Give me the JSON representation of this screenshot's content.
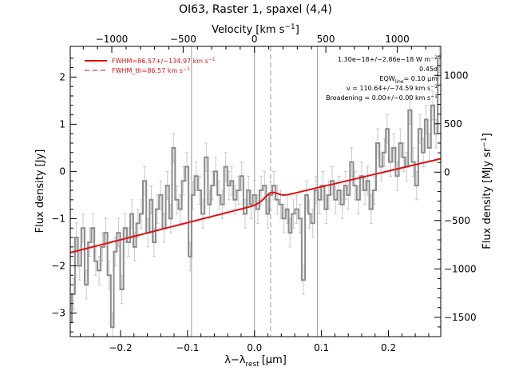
{
  "chart_data": {
    "type": "line",
    "title": "OI63, Raster 1, spaxel (4,4)",
    "xlabel": "λ−λ",
    "xlabel_sub": "rest",
    "xlabel_unit": "[μm]",
    "ylabel_left": "Flux density [Jy]",
    "ylabel_right": "Flux density [MJy sr",
    "ylabel_right_sup": "−1",
    "ylabel_right_end": "]",
    "top_axis_label": "Velocity [km s",
    "top_axis_label_sup": "−1",
    "top_axis_label_end": "]",
    "xlim": [
      -0.275,
      0.278
    ],
    "ylim": [
      -3.5,
      2.65
    ],
    "right_ylim": [
      -1700,
      1300
    ],
    "top_axis_map": {
      "vel_at_x0": 0,
      "x_per_1000_kms": 0.213
    },
    "x_ticks": [
      -0.2,
      -0.1,
      0.0,
      0.1,
      0.2
    ],
    "x_tick_labels": [
      "−0.2",
      "−0.1",
      "0.0",
      "0.1",
      "0.2"
    ],
    "y_ticks": [
      -3,
      -2,
      -1,
      0,
      1,
      2
    ],
    "y_tick_labels": [
      "−3",
      "−2",
      "−1",
      "0",
      "1",
      "2"
    ],
    "right_ticks": [
      -1500,
      -1000,
      -500,
      0,
      500,
      1000
    ],
    "right_tick_labels": [
      "−1500",
      "−1000",
      "−500",
      "0",
      "500",
      "1000"
    ],
    "top_ticks": [
      -1000,
      -500,
      0,
      500,
      1000
    ],
    "top_tick_labels": [
      "−1000",
      "−500",
      "0",
      "500",
      "1000"
    ],
    "vlines_solid": [
      -0.094,
      0.0,
      0.094
    ],
    "vline_dashed": 0.024,
    "legend": [
      {
        "label": "FWHM=86.57+/−134.97 km s",
        "sup": "−1",
        "style": "solid"
      },
      {
        "label": "FWHM_th=86.57 km s",
        "sup": "−1",
        "style": "dashed"
      }
    ],
    "annotations": [
      "1.30e−18+/−2.86e−18 W m",
      "−2",
      "0.45σ",
      "EQW",
      "line",
      "= 0.10 μm",
      "v = 110.64+/−74.59 km s",
      "−1",
      "Broadening = 0.00+/−0.00 km s",
      "−1"
    ],
    "colors": {
      "data": "#8c8c8c",
      "errorbar": "#c8c8c8",
      "fit": "#e01010",
      "axis": "#000000",
      "vline": "#9a9a9a"
    },
    "fit_line": {
      "x": [
        -0.275,
        -0.002,
        0.024,
        0.278
      ],
      "y": [
        -1.72,
        -0.73,
        -0.58,
        0.27
      ],
      "bump_center": 0.025,
      "bump_amp": 0.13,
      "bump_sigma": 0.009
    },
    "series": [
      {
        "x": [
          -0.275,
          -0.27,
          -0.266,
          -0.261,
          -0.256,
          -0.251,
          -0.246,
          -0.241,
          -0.237,
          -0.232,
          -0.227,
          -0.222,
          -0.217,
          -0.212,
          -0.208,
          -0.203,
          -0.198,
          -0.193,
          -0.188,
          -0.183,
          -0.179,
          -0.174,
          -0.169,
          -0.164,
          -0.159,
          -0.154,
          -0.15,
          -0.145,
          -0.14,
          -0.135,
          -0.13,
          -0.125,
          -0.121,
          -0.116,
          -0.111,
          -0.106,
          -0.101,
          -0.096,
          -0.092,
          -0.087,
          -0.082,
          -0.077,
          -0.072,
          -0.067,
          -0.063,
          -0.058,
          -0.053,
          -0.048,
          -0.043,
          -0.038,
          -0.034,
          -0.029,
          -0.024,
          -0.019,
          -0.014,
          -0.009,
          -0.005,
          0.0,
          0.005,
          0.01,
          0.015,
          0.02,
          0.024,
          0.029,
          0.034,
          0.039,
          0.044,
          0.049,
          0.053,
          0.058,
          0.063,
          0.068,
          0.073,
          0.078,
          0.082,
          0.087,
          0.092,
          0.097,
          0.102,
          0.107,
          0.111,
          0.116,
          0.121,
          0.126,
          0.131,
          0.136,
          0.14,
          0.145,
          0.15,
          0.155,
          0.16,
          0.165,
          0.169,
          0.174,
          0.179,
          0.184,
          0.189,
          0.194,
          0.198,
          0.203,
          0.208,
          0.213,
          0.218,
          0.223,
          0.227,
          0.232,
          0.237,
          0.242,
          0.247,
          0.252,
          0.256,
          0.261,
          0.266,
          0.271,
          0.276
        ],
        "y": [
          -3.2,
          -2.6,
          -1.4,
          -2.0,
          -1.2,
          -2.4,
          -1.5,
          -1.2,
          -1.9,
          -2.1,
          -1.6,
          -1.3,
          -2.2,
          -3.3,
          -1.7,
          -1.3,
          -2.5,
          -1.2,
          -1.5,
          -0.9,
          -1.6,
          -1.1,
          -0.9,
          -0.2,
          -1.3,
          -0.6,
          -1.5,
          -0.8,
          -0.5,
          -1.2,
          -0.3,
          -1.0,
          0.5,
          -0.6,
          -0.8,
          -0.2,
          0.1,
          -1.8,
          -0.5,
          -0.1,
          -0.4,
          -0.9,
          0.3,
          -0.7,
          -0.3,
          0.0,
          -0.5,
          -0.7,
          0.1,
          -0.3,
          -0.2,
          -0.6,
          -0.4,
          -0.1,
          -0.9,
          -0.4,
          -0.7,
          -0.5,
          -0.8,
          -0.4,
          -0.3,
          -0.9,
          -0.5,
          -0.3,
          -0.6,
          -0.7,
          -1.0,
          -0.8,
          -1.3,
          -0.9,
          -0.8,
          -1.0,
          -2.3,
          -0.5,
          -0.9,
          -1.1,
          -0.4,
          -0.6,
          -0.3,
          -0.8,
          -0.5,
          -0.2,
          -0.6,
          -0.4,
          -0.7,
          -0.3,
          -0.5,
          0.2,
          -0.3,
          -0.6,
          -0.1,
          -0.4,
          -0.2,
          -0.8,
          -0.4,
          0.6,
          0.1,
          0.4,
          0.9,
          0.2,
          0.5,
          -0.1,
          0.6,
          0.3,
          0.1,
          1.3,
          0.2,
          -0.3,
          0.9,
          0.4,
          1.1,
          0.5,
          1.4,
          0.8,
          2.4
        ],
        "err": [
          0.35,
          0.33,
          0.31,
          0.3,
          0.3,
          0.3,
          0.3,
          0.3,
          0.3,
          0.3,
          0.3,
          0.3,
          0.3,
          0.3,
          0.3,
          0.3,
          0.3,
          0.3,
          0.3,
          0.3,
          0.3,
          0.3,
          0.3,
          0.3,
          0.3,
          0.3,
          0.3,
          0.3,
          0.3,
          0.3,
          0.3,
          0.3,
          0.3,
          0.3,
          0.3,
          0.3,
          0.3,
          0.3,
          0.3,
          0.3,
          0.3,
          0.3,
          0.3,
          0.3,
          0.3,
          0.3,
          0.3,
          0.3,
          0.3,
          0.3,
          0.3,
          0.3,
          0.3,
          0.3,
          0.3,
          0.3,
          0.3,
          0.3,
          0.3,
          0.3,
          0.3,
          0.3,
          0.3,
          0.3,
          0.3,
          0.3,
          0.3,
          0.3,
          0.3,
          0.3,
          0.3,
          0.3,
          0.3,
          0.3,
          0.3,
          0.3,
          0.3,
          0.3,
          0.3,
          0.3,
          0.3,
          0.3,
          0.3,
          0.3,
          0.3,
          0.3,
          0.3,
          0.3,
          0.3,
          0.3,
          0.3,
          0.3,
          0.3,
          0.3,
          0.3,
          0.3,
          0.3,
          0.3,
          0.3,
          0.3,
          0.3,
          0.3,
          0.3,
          0.3,
          0.3,
          0.3,
          0.3,
          0.3,
          0.3,
          0.3,
          0.3,
          0.3,
          0.3,
          0.3,
          0.3
        ]
      }
    ]
  }
}
